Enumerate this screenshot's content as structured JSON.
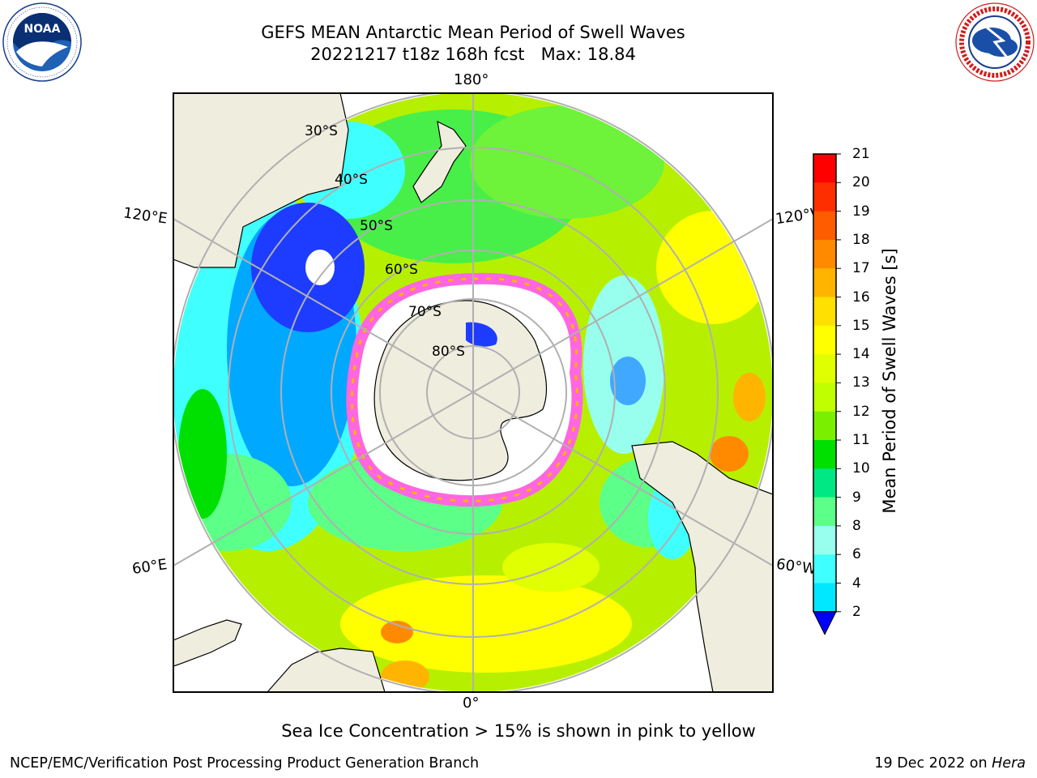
{
  "header": {
    "title_line1": "GEFS MEAN Antarctic Mean Period of Swell Waves",
    "title_line2": "20221217 t18z 168h fcst   Max: 18.84"
  },
  "logos": {
    "left": {
      "name": "NOAA",
      "text": "NOAA",
      "ring_text": "NATIONAL OCEANIC AND ATMOSPHERIC ADMINISTRATION · U.S. DEPARTMENT OF COMMERCE"
    },
    "right": {
      "name": "National Weather Service",
      "ring_text": "NATIONAL WEATHER SERVICE"
    }
  },
  "map": {
    "projection": "south polar stereographic",
    "longitude_labels": {
      "top": "180°",
      "bottom": "0°",
      "upper_left": "120°E",
      "upper_right": "120°W",
      "lower_left": "60°E",
      "lower_right": "60°W"
    },
    "latitude_labels": [
      "30°S",
      "40°S",
      "50°S",
      "60°S",
      "70°S",
      "80°S"
    ],
    "colors": {
      "land": "#efedde",
      "ocean_mid": "#b6f000",
      "sea_ice_pink": "#ff66e0",
      "frame": "#000000",
      "grid": "#b0b0b0"
    }
  },
  "colorbar": {
    "label": "Mean Period of Swell Waves [s]",
    "ticks": [
      "21",
      "20",
      "19",
      "18",
      "17",
      "16",
      "15",
      "14",
      "13",
      "12",
      "11",
      "10",
      "9",
      "8",
      "6",
      "4",
      "2"
    ],
    "colors": [
      "#ff0000",
      "#ff2e00",
      "#ff5c00",
      "#ff8a00",
      "#ffb400",
      "#ffe000",
      "#ffff00",
      "#e0ff00",
      "#c0ff00",
      "#7af000",
      "#00e000",
      "#00e884",
      "#5cff88",
      "#98ffee",
      "#40ffff",
      "#00e8ff",
      "#009cff"
    ],
    "underflow_color": "#0000ff"
  },
  "footer": {
    "note": "Sea Ice Concentration > 15% is shown in pink to yellow",
    "credit": "NCEP/EMC/Verification Post Processing Product Generation Branch",
    "date_prefix": "19 Dec 2022 on ",
    "date_host": "Hera"
  }
}
